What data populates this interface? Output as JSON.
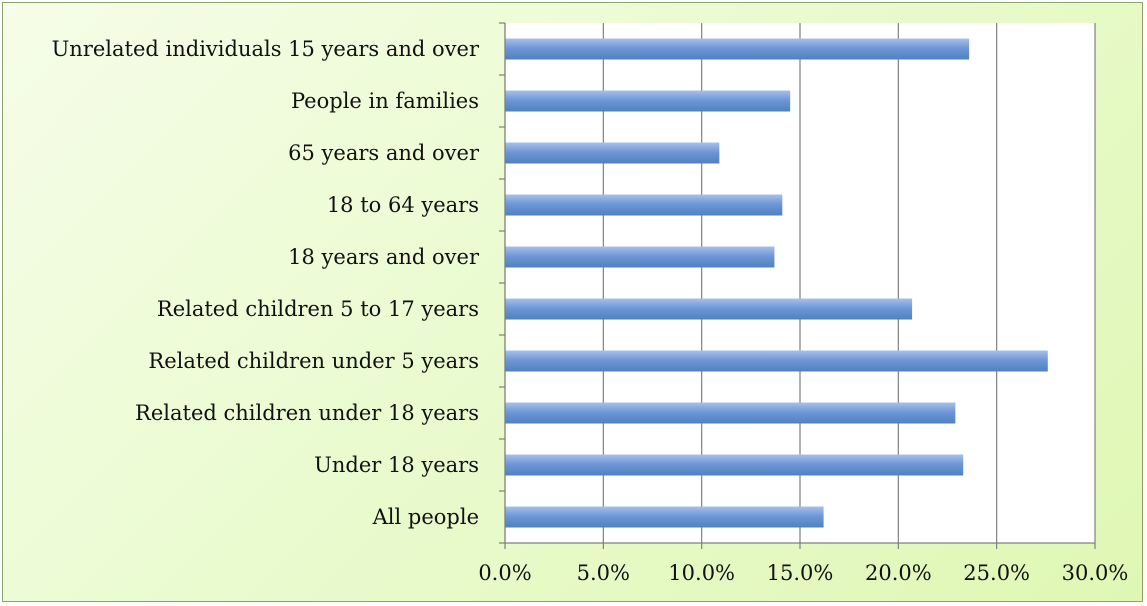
{
  "chart_data": {
    "type": "bar",
    "orientation": "horizontal",
    "categories": [
      "All people",
      "Under 18 years",
      "Related children under 18 years",
      "Related children under 5 years",
      "Related children 5 to 17 years",
      "18 years and over",
      "18 to 64 years",
      "65 years and over",
      "People in families",
      "Unrelated individuals 15 years and over"
    ],
    "values": [
      16.2,
      23.3,
      22.9,
      27.6,
      20.7,
      13.7,
      14.1,
      10.9,
      14.5,
      23.6
    ],
    "xlim": [
      0,
      30
    ],
    "x_ticks": [
      "0.0%",
      "5.0%",
      "10.0%",
      "15.0%",
      "20.0%",
      "25.0%",
      "30.0%"
    ],
    "title": "",
    "xlabel": "",
    "ylabel": "",
    "grid": "vertical major gridlines",
    "legend": "none",
    "colors": {
      "bar": "#4f81bd",
      "bar_light": "#a7c1ea",
      "plot_background": "#ffffff",
      "chart_background": "#eafbd0",
      "gridline": "#808080"
    }
  }
}
